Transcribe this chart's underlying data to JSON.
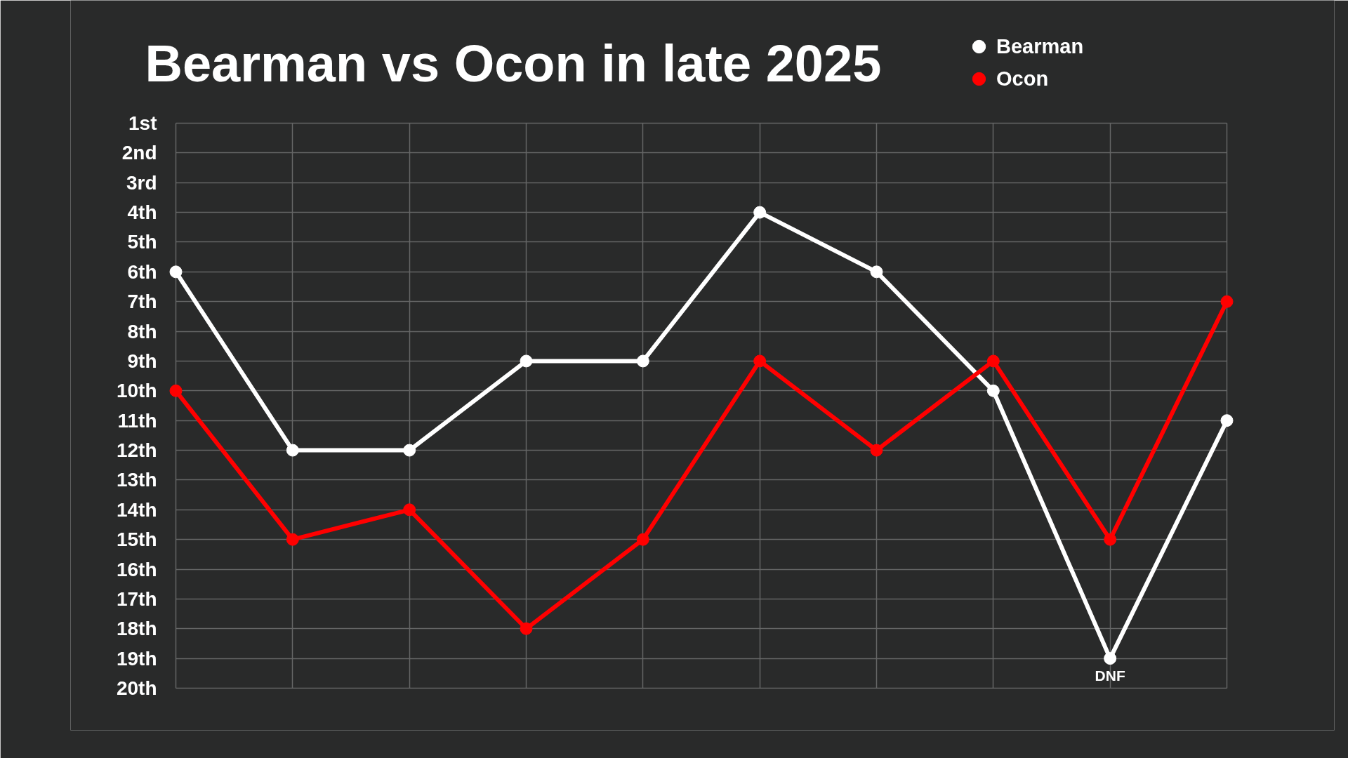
{
  "chart_data": {
    "type": "line",
    "title": "Bearman vs Ocon in late 2025",
    "categories": [
      null,
      null,
      null,
      null,
      null,
      null,
      null,
      null,
      null,
      null
    ],
    "series": [
      {
        "name": "Bearman",
        "color": "#ffffff",
        "values": [
          6,
          12,
          12,
          9,
          9,
          4,
          6,
          10,
          19,
          11
        ],
        "value_labels": [
          null,
          null,
          null,
          null,
          null,
          null,
          null,
          null,
          "DNF",
          null
        ]
      },
      {
        "name": "Ocon",
        "color": "#ff0000",
        "values": [
          10,
          15,
          14,
          18,
          15,
          9,
          12,
          9,
          15,
          7
        ]
      }
    ],
    "ylim": [
      20,
      1
    ],
    "yticks": [
      {
        "value": 1,
        "label": "1st"
      },
      {
        "value": 2,
        "label": "2nd"
      },
      {
        "value": 3,
        "label": "3rd"
      },
      {
        "value": 4,
        "label": "4th"
      },
      {
        "value": 5,
        "label": "5th"
      },
      {
        "value": 6,
        "label": "6th"
      },
      {
        "value": 7,
        "label": "7th"
      },
      {
        "value": 8,
        "label": "8th"
      },
      {
        "value": 9,
        "label": "9th"
      },
      {
        "value": 10,
        "label": "10th"
      },
      {
        "value": 11,
        "label": "11th"
      },
      {
        "value": 12,
        "label": "12th"
      },
      {
        "value": 13,
        "label": "13th"
      },
      {
        "value": 14,
        "label": "14th"
      },
      {
        "value": 15,
        "label": "15th"
      },
      {
        "value": 16,
        "label": "16th"
      },
      {
        "value": 17,
        "label": "17th"
      },
      {
        "value": 18,
        "label": "18th"
      },
      {
        "value": 19,
        "label": "19th"
      },
      {
        "value": 20,
        "label": "20th"
      }
    ],
    "tick_labels": "y",
    "grid": true,
    "legend": "top right",
    "marker": "circle",
    "line_style": "solid"
  }
}
